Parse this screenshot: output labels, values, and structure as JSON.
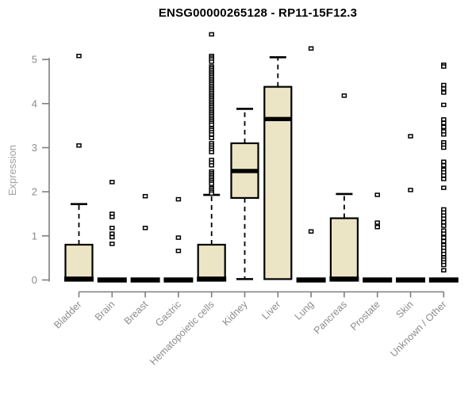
{
  "colors": {
    "box_fill": "#ebe5c5",
    "box_stroke": "#000000",
    "median": "#000000",
    "axis": "#7e7e7e",
    "tick_label": "#8c8c8c",
    "y_axis_title": "#a2a2a2",
    "title": "#000000",
    "background": "#ffffff"
  },
  "chart_data": {
    "type": "box",
    "title": "ENSG00000265128 - RP11-15F12.3",
    "ylabel": "Expression",
    "xlabel": "",
    "ylim": [
      0,
      5
    ],
    "yticks": [
      0,
      1,
      2,
      3,
      4,
      5
    ],
    "grid": false,
    "legend": "none",
    "categories": [
      "Bladder",
      "Brain",
      "Breast",
      "Gastric",
      "Hematopoietic cells",
      "Kidney",
      "Liver",
      "Lung",
      "Pancreas",
      "Prostate",
      "Skin",
      "Unknown / Other"
    ],
    "boxes": [
      {
        "category": "Bladder",
        "low": 0,
        "q1": 0,
        "median": 0.02,
        "q3": 0.8,
        "high": 1.72,
        "outliers": [
          5.08,
          3.05
        ]
      },
      {
        "category": "Brain",
        "low": 0,
        "q1": 0,
        "median": 0,
        "q3": 0,
        "high": 0,
        "outliers": [
          2.22,
          1.5,
          1.43,
          1.18,
          1.05,
          0.97,
          0.82
        ]
      },
      {
        "category": "Breast",
        "low": 0,
        "q1": 0,
        "median": 0,
        "q3": 0,
        "high": 0,
        "outliers": [
          1.9,
          1.18
        ]
      },
      {
        "category": "Gastric",
        "low": 0,
        "q1": 0,
        "median": 0,
        "q3": 0,
        "high": 0,
        "outliers": [
          1.83,
          0.96,
          0.66
        ]
      },
      {
        "category": "Hematopoietic cells",
        "low": 0,
        "q1": 0,
        "median": 0.02,
        "q3": 0.8,
        "high": 1.93,
        "outliers": [
          5.57,
          5.08,
          5.04,
          5.0,
          4.95,
          4.84,
          4.8,
          4.76,
          4.72,
          4.68,
          4.64,
          4.6,
          4.56,
          4.52,
          4.48,
          4.44,
          4.4,
          4.36,
          4.32,
          4.28,
          4.24,
          4.2,
          4.16,
          4.12,
          4.08,
          4.04,
          4.0,
          3.96,
          3.92,
          3.88,
          3.84,
          3.8,
          3.76,
          3.72,
          3.68,
          3.64,
          3.6,
          3.56,
          3.52,
          3.44,
          3.4,
          3.35,
          3.3,
          3.22,
          3.1,
          3.05,
          3.0,
          2.95,
          2.9,
          2.72,
          2.66,
          2.6,
          2.46,
          2.42,
          2.38,
          2.34,
          2.3,
          2.26,
          2.22,
          2.18,
          2.08,
          2.04,
          2.0,
          1.96
        ]
      },
      {
        "category": "Kidney",
        "low": 0.02,
        "q1": 1.86,
        "median": 2.47,
        "q3": 3.1,
        "high": 3.88,
        "outliers": []
      },
      {
        "category": "Liver",
        "low": 0,
        "q1": 0.02,
        "median": 3.65,
        "q3": 4.38,
        "high": 5.05,
        "outliers": []
      },
      {
        "category": "Lung",
        "low": 0,
        "q1": 0,
        "median": 0,
        "q3": 0,
        "high": 0,
        "outliers": [
          5.25,
          1.1
        ]
      },
      {
        "category": "Pancreas",
        "low": 0,
        "q1": 0,
        "median": 0.02,
        "q3": 1.4,
        "high": 1.95,
        "outliers": [
          4.18
        ]
      },
      {
        "category": "Prostate",
        "low": 0,
        "q1": 0,
        "median": 0,
        "q3": 0,
        "high": 0,
        "outliers": [
          1.93,
          1.3,
          1.2
        ]
      },
      {
        "category": "Skin",
        "low": 0,
        "q1": 0,
        "median": 0,
        "q3": 0,
        "high": 0,
        "outliers": [
          3.26,
          2.04
        ]
      },
      {
        "category": "Unknown / Other",
        "low": 0,
        "q1": 0,
        "median": 0,
        "q3": 0,
        "high": 0,
        "outliers": [
          4.88,
          4.84,
          4.42,
          4.34,
          4.25,
          3.97,
          3.64,
          3.56,
          3.47,
          3.37,
          3.3,
          3.12,
          3.06,
          3.0,
          2.68,
          2.6,
          2.5,
          2.44,
          2.37,
          2.29,
          2.09,
          1.6,
          1.53,
          1.46,
          1.39,
          1.31,
          1.23,
          1.12,
          1.05,
          0.96,
          0.88,
          0.79,
          0.73,
          0.66,
          0.59,
          0.51,
          0.46,
          0.4,
          0.34,
          0.22
        ]
      }
    ]
  }
}
